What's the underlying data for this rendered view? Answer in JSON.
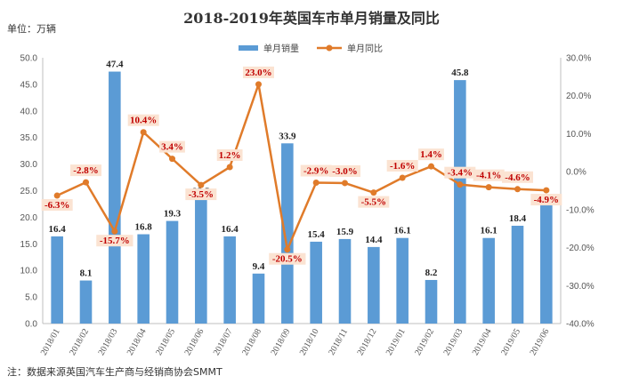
{
  "chart_data": {
    "type": "bar",
    "title": "2018-2019年英国车市单月销量及同比",
    "unit_label": "单位：万辆",
    "note": "注：数据来源英国汽车生产商与经销商协会SMMT",
    "categories": [
      "2018/01",
      "2018/02",
      "2018/03",
      "2018/04",
      "2018/05",
      "2018/06",
      "2018/07",
      "2018/08",
      "2018/09",
      "2018/10",
      "2018/11",
      "2018/12",
      "2019/01",
      "2019/02",
      "2019/03",
      "2019/04",
      "2019/05",
      "2019/06"
    ],
    "series": [
      {
        "name": "单月销量",
        "type": "bar",
        "axis": "left",
        "color": "#5b9bd5",
        "values": [
          16.4,
          8.1,
          47.4,
          16.8,
          19.3,
          23.5,
          16.4,
          9.4,
          33.9,
          15.4,
          15.9,
          14.4,
          16.1,
          8.2,
          45.8,
          16.1,
          18.4,
          22.34
        ],
        "labels": [
          "16.4",
          "8.1",
          "47.4",
          "16.8",
          "19.3",
          "23.5",
          "16.4",
          "9.4",
          "33.9",
          "15.4",
          "15.9",
          "14.4",
          "16.1",
          "8.2",
          "45.8",
          "16.1",
          "18.4",
          "22.34"
        ]
      },
      {
        "name": "单月同比",
        "type": "line",
        "axis": "right",
        "color": "#e07b2a",
        "values": [
          -6.3,
          -2.8,
          -15.7,
          10.4,
          3.4,
          -3.5,
          1.2,
          23.0,
          -20.5,
          -2.9,
          -3.0,
          -5.5,
          -1.6,
          1.4,
          -3.4,
          -4.1,
          -4.6,
          -4.9
        ],
        "labels": [
          "-6.3%",
          "-2.8%",
          "-15.7%",
          "10.4%",
          "3.4%",
          "-3.5%",
          "1.2%",
          "23.0%",
          "-20.5%",
          "-2.9%",
          "-3.0%",
          "-5.5%",
          "-1.6%",
          "1.4%",
          "-3.4%",
          "-4.1%",
          "-4.6%",
          "-4.9%"
        ]
      }
    ],
    "y_left": {
      "min": 0,
      "max": 50,
      "ticks": [
        "0.0",
        "5.0",
        "10.0",
        "15.0",
        "20.0",
        "25.0",
        "30.0",
        "35.0",
        "40.0",
        "45.0",
        "50.0"
      ]
    },
    "y_right": {
      "min": -40,
      "max": 30,
      "ticks": [
        "-40.0%",
        "-30.0%",
        "-20.0%",
        "-10.0%",
        "0.0%",
        "10.0%",
        "20.0%",
        "30.0%"
      ]
    },
    "grid": false,
    "legend_position": "top-center"
  }
}
